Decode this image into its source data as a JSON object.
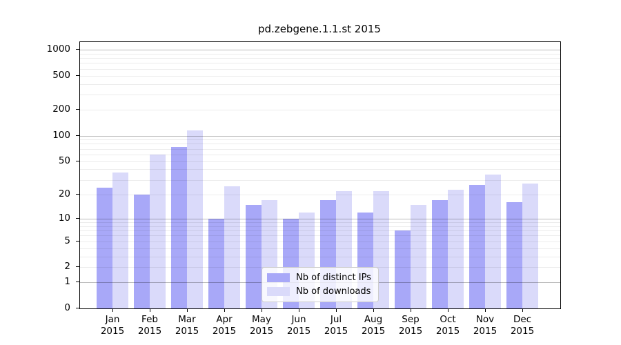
{
  "chart_data": {
    "type": "bar",
    "title": "pd.zebgene.1.1.st 2015",
    "categories": [
      "Jan 2015",
      "Feb 2015",
      "Mar 2015",
      "Apr 2015",
      "May 2015",
      "Jun 2015",
      "Jul 2015",
      "Aug 2015",
      "Sep 2015",
      "Oct 2015",
      "Nov 2015",
      "Dec 2015"
    ],
    "series": [
      {
        "name": "Nb of distinct IPs",
        "color": "#a8a8f8",
        "values": [
          24,
          20,
          74,
          10,
          15,
          10,
          17,
          12,
          7,
          17,
          26,
          16
        ]
      },
      {
        "name": "Nb of downloads",
        "color": "#dadafa",
        "values": [
          37,
          60,
          116,
          25,
          17,
          12,
          22,
          22,
          15,
          23,
          35,
          27
        ]
      }
    ],
    "y_axis": {
      "scale": "log1p",
      "tick_values": [
        1000,
        500,
        200,
        100,
        50,
        20,
        10,
        5,
        2,
        1,
        0
      ],
      "minor_grid_values": [
        2,
        3,
        4,
        5,
        6,
        7,
        8,
        9,
        20,
        30,
        40,
        50,
        60,
        70,
        80,
        90,
        200,
        300,
        400,
        500,
        600,
        700,
        800,
        900
      ],
      "major_grid_values": [
        1,
        10,
        100,
        1000
      ],
      "ylim": [
        0,
        1200
      ]
    },
    "legend_position": "lower center",
    "grid": "horizontal",
    "colors": {
      "bar_distinct_ips": "#a8a8f8",
      "bar_downloads": "#dadafa",
      "axis": "#000000",
      "grid_major": "#bababa",
      "grid_minor": "#ececec",
      "legend_border": "#cccccc",
      "background": "#ffffff"
    }
  }
}
